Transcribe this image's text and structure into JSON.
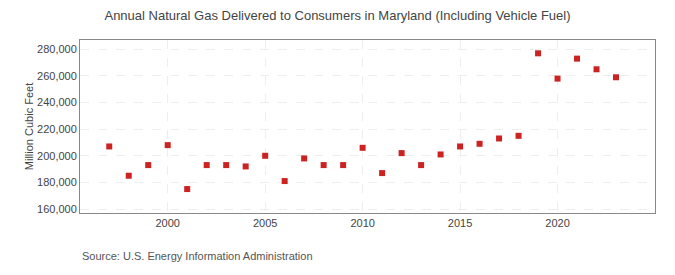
{
  "chart_data": {
    "type": "scatter",
    "title": "Annual Natural Gas Delivered to Consumers in Maryland (Including Vehicle Fuel)",
    "ylabel": "Million Cubic Feet",
    "annotations": [
      "Source: U.S. Energy Information Administration"
    ],
    "x": [
      1997,
      1998,
      1999,
      2000,
      2001,
      2002,
      2003,
      2004,
      2005,
      2006,
      2007,
      2008,
      2009,
      2010,
      2011,
      2012,
      2013,
      2014,
      2015,
      2016,
      2017,
      2018,
      2019,
      2020,
      2021,
      2022,
      2023
    ],
    "values": [
      207000,
      185000,
      193000,
      208000,
      175000,
      193000,
      193000,
      192000,
      200000,
      181000,
      198000,
      193000,
      193000,
      206000,
      187000,
      202000,
      193000,
      201000,
      207000,
      209000,
      213000,
      215000,
      277000,
      258000,
      273000,
      265000,
      259000
    ],
    "color": "#cc2222",
    "marker": "square",
    "xlim": [
      1995.5,
      2025
    ],
    "xticks": [
      2000,
      2005,
      2010,
      2015,
      2020
    ],
    "ylim": [
      157000,
      287000
    ],
    "yticks": [
      {
        "value": 160000,
        "label": "160,000"
      },
      {
        "value": 180000,
        "label": "180,000"
      },
      {
        "value": 200000,
        "label": "200,000"
      },
      {
        "value": 220000,
        "label": "220,000"
      },
      {
        "value": 240000,
        "label": "240,000"
      },
      {
        "value": 260000,
        "label": "260,000"
      },
      {
        "value": 280000,
        "label": "280,000"
      }
    ],
    "grid": true
  }
}
